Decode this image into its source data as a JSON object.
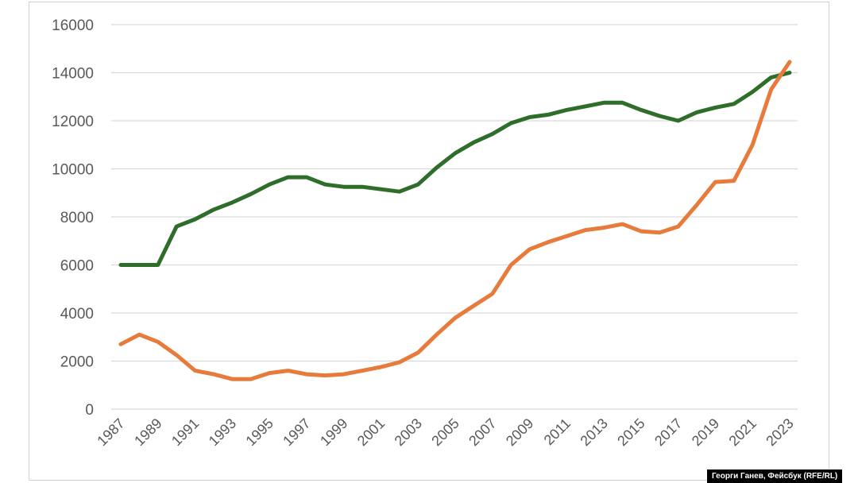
{
  "chart_data": {
    "type": "line",
    "title": "",
    "xlabel": "",
    "ylabel": "",
    "ylim": [
      0,
      16000
    ],
    "yticks": [
      0,
      2000,
      4000,
      6000,
      8000,
      10000,
      12000,
      14000,
      16000
    ],
    "x_tick_labels": [
      "1987",
      "1989",
      "1991",
      "1993",
      "1995",
      "1997",
      "1999",
      "2001",
      "2003",
      "2005",
      "2007",
      "2009",
      "2011",
      "2013",
      "2015",
      "2017",
      "2019",
      "2021",
      "2023"
    ],
    "grid": true,
    "legend": "none",
    "x": [
      1987,
      1988,
      1989,
      1990,
      1991,
      1992,
      1993,
      1994,
      1995,
      1996,
      1997,
      1998,
      1999,
      2000,
      2001,
      2002,
      2003,
      2004,
      2005,
      2006,
      2007,
      2008,
      2009,
      2010,
      2011,
      2012,
      2013,
      2014,
      2015,
      2016,
      2017,
      2018,
      2019,
      2020,
      2021,
      2022,
      2023
    ],
    "series": [
      {
        "color": "#2e6e2a",
        "values": [
          6000,
          6000,
          6000,
          7600,
          7900,
          8300,
          8600,
          8950,
          9350,
          9650,
          9650,
          9350,
          9250,
          9250,
          9150,
          9050,
          9350,
          10050,
          10650,
          11100,
          11450,
          11900,
          12150,
          12250,
          12450,
          12600,
          12750,
          12750,
          12450,
          12200,
          12000,
          12350,
          12550,
          12700,
          13200,
          13800,
          14000
        ]
      },
      {
        "color": "#e77b3c",
        "values": [
          2700,
          3100,
          2800,
          2250,
          1600,
          1450,
          1250,
          1250,
          1500,
          1600,
          1450,
          1400,
          1450,
          1600,
          1750,
          1950,
          2350,
          3100,
          3800,
          4300,
          4800,
          6000,
          6650,
          6950,
          7200,
          7450,
          7550,
          7700,
          7400,
          7350,
          7600,
          8500,
          9450,
          9500,
          11000,
          13300,
          14450
        ]
      }
    ]
  },
  "credit": "Георги Ганев, Фейсбук (RFE/RL)"
}
